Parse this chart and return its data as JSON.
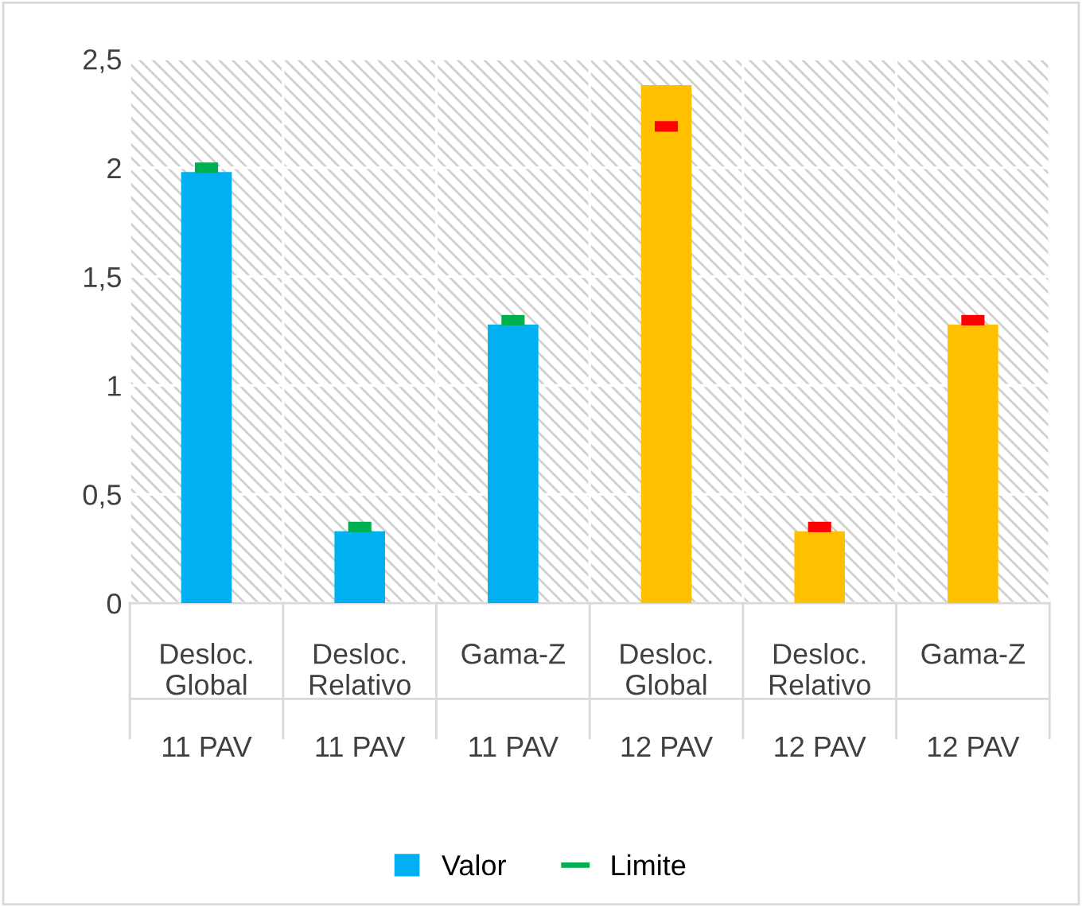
{
  "chart_data": {
    "type": "bar",
    "categories": [
      "Desloc.\nGlobal\n\n11 PAV",
      "Desloc.\nRelativo\n\n11 PAV",
      "Gama-Z\n\n\n11 PAV",
      "Desloc.\nGlobal\n\n12 PAV",
      "Desloc.\nRelativo\n\n12 PAV",
      "Gama-Z\n\n\n12 PAV"
    ],
    "series": [
      {
        "name": "Valor",
        "color": "#00b0f0",
        "colors": [
          "#00b0f0",
          "#00b0f0",
          "#00b0f0",
          "#ffc000",
          "#ffc000",
          "#ffc000"
        ],
        "values": [
          1.98,
          0.33,
          1.28,
          2.38,
          0.33,
          1.28
        ]
      },
      {
        "name": "Limite",
        "type": "scatter",
        "color": "#00b050",
        "colors": [
          "#00b050",
          "#00b050",
          "#00b050",
          "#ff0000",
          "#ff0000",
          "#ff0000"
        ],
        "values": [
          2.0,
          0.35,
          1.3,
          2.19,
          0.35,
          1.3
        ]
      }
    ],
    "ylim": [
      0,
      2.5
    ],
    "yticks": [
      {
        "value": 0,
        "label": "0"
      },
      {
        "value": 0.5,
        "label": "0,5"
      },
      {
        "value": 1,
        "label": "1"
      },
      {
        "value": 1.5,
        "label": "1,5"
      },
      {
        "value": 2,
        "label": "2"
      },
      {
        "value": 2.5,
        "label": "2,5"
      }
    ],
    "grid": true,
    "legend": "bottom"
  }
}
